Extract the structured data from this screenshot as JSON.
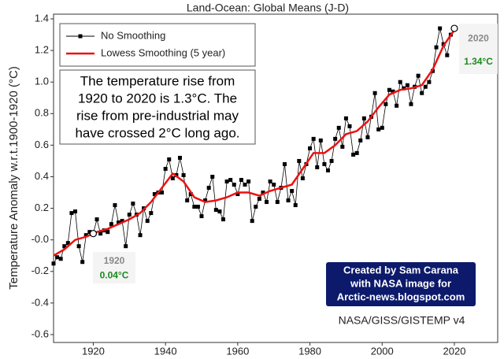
{
  "chart_data": {
    "type": "line",
    "title": "Land-Ocean: Global Means (J-D)",
    "y_label": "Temperature Anomaly w.r.t.1900-1920 (°C)",
    "x": [
      1909,
      1910,
      1911,
      1912,
      1913,
      1914,
      1915,
      1916,
      1917,
      1918,
      1919,
      1920,
      1921,
      1922,
      1923,
      1924,
      1925,
      1926,
      1927,
      1928,
      1929,
      1930,
      1931,
      1932,
      1933,
      1934,
      1935,
      1936,
      1937,
      1938,
      1939,
      1940,
      1941,
      1942,
      1943,
      1944,
      1945,
      1946,
      1947,
      1948,
      1949,
      1950,
      1951,
      1952,
      1953,
      1954,
      1955,
      1956,
      1957,
      1958,
      1959,
      1960,
      1961,
      1962,
      1963,
      1964,
      1965,
      1966,
      1967,
      1968,
      1969,
      1970,
      1971,
      1972,
      1973,
      1974,
      1975,
      1976,
      1977,
      1978,
      1979,
      1980,
      1981,
      1982,
      1983,
      1984,
      1985,
      1986,
      1987,
      1988,
      1989,
      1990,
      1991,
      1992,
      1993,
      1994,
      1995,
      1996,
      1997,
      1998,
      1999,
      2000,
      2001,
      2002,
      2003,
      2004,
      2005,
      2006,
      2007,
      2008,
      2009,
      2010,
      2011,
      2012,
      2013,
      2014,
      2015,
      2016,
      2017,
      2018,
      2019,
      2020
    ],
    "series": [
      {
        "name": "No Smoothing",
        "color": "#000000",
        "marker": "square",
        "values": [
          -0.15,
          -0.11,
          -0.12,
          -0.04,
          -0.02,
          0.17,
          0.18,
          -0.04,
          -0.14,
          0.03,
          0.05,
          0.04,
          0.13,
          0.04,
          0.06,
          0.05,
          0.1,
          0.22,
          0.11,
          0.12,
          -0.04,
          0.16,
          0.23,
          0.16,
          0.03,
          0.2,
          0.12,
          0.17,
          0.29,
          0.3,
          0.3,
          0.45,
          0.51,
          0.39,
          0.41,
          0.52,
          0.41,
          0.25,
          0.29,
          0.21,
          0.21,
          0.15,
          0.25,
          0.33,
          0.4,
          0.19,
          0.18,
          0.13,
          0.37,
          0.38,
          0.35,
          0.29,
          0.38,
          0.35,
          0.37,
          0.12,
          0.21,
          0.26,
          0.3,
          0.24,
          0.37,
          0.35,
          0.24,
          0.33,
          0.48,
          0.25,
          0.31,
          0.22,
          0.5,
          0.39,
          0.48,
          0.58,
          0.64,
          0.46,
          0.63,
          0.48,
          0.44,
          0.5,
          0.64,
          0.71,
          0.59,
          0.77,
          0.72,
          0.54,
          0.55,
          0.63,
          0.77,
          0.65,
          0.78,
          0.93,
          0.7,
          0.71,
          0.86,
          0.95,
          0.94,
          0.85,
          1.0,
          0.96,
          0.98,
          0.86,
          0.97,
          1.04,
          0.93,
          0.97,
          1.0,
          1.07,
          1.22,
          1.34,
          1.24,
          1.17,
          1.3,
          1.34
        ]
      },
      {
        "name": "Lowess Smoothing  (5 year)",
        "color": "#ee1111",
        "x": [
          1909,
          1912,
          1915,
          1918,
          1921,
          1924,
          1927,
          1930,
          1933,
          1936,
          1939,
          1942,
          1945,
          1948,
          1951,
          1954,
          1957,
          1960,
          1963,
          1966,
          1969,
          1972,
          1975,
          1978,
          1981,
          1984,
          1987,
          1990,
          1993,
          1996,
          1999,
          2002,
          2005,
          2008,
          2011,
          2014,
          2017,
          2020
        ],
        "values": [
          -0.1,
          -0.06,
          0.0,
          0.02,
          0.05,
          0.07,
          0.1,
          0.13,
          0.17,
          0.24,
          0.33,
          0.42,
          0.37,
          0.27,
          0.24,
          0.25,
          0.27,
          0.3,
          0.3,
          0.28,
          0.31,
          0.33,
          0.35,
          0.45,
          0.55,
          0.55,
          0.6,
          0.67,
          0.69,
          0.75,
          0.84,
          0.92,
          0.95,
          0.96,
          0.98,
          1.08,
          1.23,
          1.33
        ]
      }
    ],
    "xlim": [
      1909,
      2032
    ],
    "ylim": [
      -0.65,
      1.43
    ],
    "xticks": [
      1920,
      1940,
      1960,
      1980,
      2000,
      2020
    ],
    "yticks": [
      1.4,
      1.2,
      {
        "value": 1,
        "label": "1.0"
      },
      0.8,
      0.6,
      0.4,
      0.2,
      {
        "value": 0,
        "label": "-0.0"
      },
      -0.2,
      -0.4,
      -0.6
    ],
    "legend": "upper left",
    "annotations": [
      {
        "x": 1920,
        "y": 0.04,
        "value_label": "0.04°C"
      },
      {
        "x": 2020,
        "y": 1.34,
        "value_label": "1.34°C"
      }
    ],
    "note_lines": [
      "The temperature rise from",
      "1920 to 2020 is 1.3°C. The",
      "rise from pre-industrial may",
      "have crossed 2°C long ago."
    ],
    "credit_lines": [
      "Created by Sam Carana",
      "with NASA image for",
      "Arctic-news.blogspot.com"
    ],
    "source": "NASA/GISS/GISTEMP v4"
  }
}
